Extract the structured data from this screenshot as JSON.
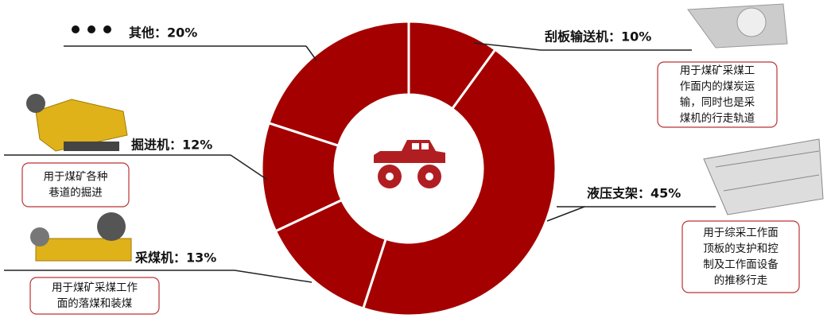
{
  "chart_data": {
    "type": "pie",
    "donut": true,
    "color": "#a50000",
    "values": [
      10,
      45,
      13,
      12,
      20
    ],
    "value_labels": [
      "刮板输送机：10%",
      "液压支架：45%",
      "采煤机：13%",
      "掘进机：12%",
      "其他：20%"
    ],
    "descriptions": [
      [
        "用于煤矿采煤工",
        "作面内的煤炭运",
        "输，同时也是采",
        "煤机的行走轨道"
      ],
      [
        "用于综采工作面",
        "顶板的支护和控",
        "制及工作面设备",
        "的推移行走"
      ],
      [
        "用于煤矿采煤工作",
        "面的落煤和装煤"
      ],
      [
        "用于煤矿各种",
        "巷道的掘进"
      ],
      []
    ]
  }
}
